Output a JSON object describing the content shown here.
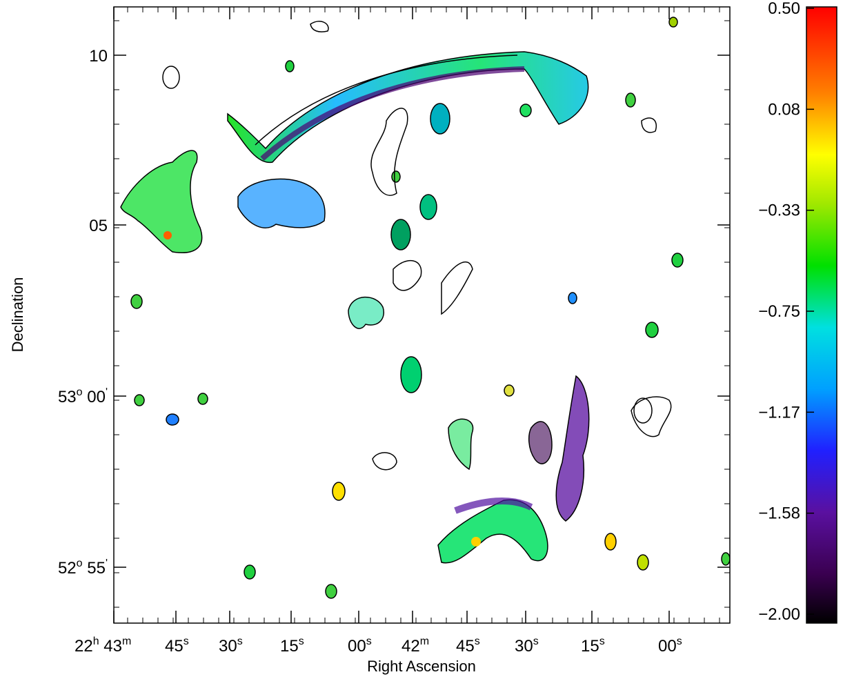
{
  "chart_data": {
    "type": "heatmap",
    "title": "",
    "xlabel": "Right Ascension",
    "ylabel": "Declination",
    "x_ticks": [
      {
        "main": "22",
        "unit": "h",
        "main2": "43",
        "unit2": "m"
      },
      {
        "main": "45",
        "unit": "s"
      },
      {
        "main": "30",
        "unit": "s"
      },
      {
        "main": "15",
        "unit": "s"
      },
      {
        "main": "00",
        "unit": "s"
      },
      {
        "main": "42",
        "unit": "m"
      },
      {
        "main": "45",
        "unit": "s"
      },
      {
        "main": "30",
        "unit": "s"
      },
      {
        "main": "15",
        "unit": "s"
      },
      {
        "main": "00",
        "unit": "s"
      }
    ],
    "y_ticks": [
      {
        "main": "10",
        "unit": ""
      },
      {
        "main": "05",
        "unit": ""
      },
      {
        "main": "53",
        "unit": "o",
        "main2": "00",
        "unit2": "'"
      },
      {
        "main": "52",
        "unit": "o",
        "main2": "55",
        "unit2": "'"
      }
    ],
    "colorbar": {
      "range": [
        -2.0,
        0.5
      ],
      "ticks": [
        "0.50",
        "0.08",
        "−0.33",
        "−0.75",
        "−1.17",
        "−1.58",
        "−2.00"
      ],
      "colors": [
        "#000000",
        "#3a0050",
        "#5a10a0",
        "#2020ff",
        "#00a0ff",
        "#00e0e0",
        "#00e000",
        "#a0e800",
        "#ffff00",
        "#ff8000",
        "#ff0000"
      ]
    },
    "grid": false
  }
}
